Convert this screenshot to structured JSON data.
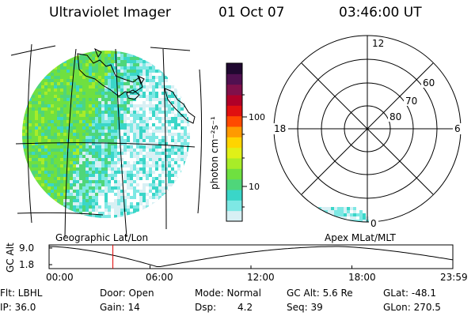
{
  "header": {
    "instrument": "Ultraviolet Imager",
    "date": "01 Oct 07",
    "time": "03:46:00 UT"
  },
  "left_map": {
    "label": "Geographic Lat/Lon"
  },
  "colorbar": {
    "unit_label": "photon cm⁻²s⁻¹",
    "tick_labels": [
      "100",
      "10"
    ],
    "colors": [
      "#d8f0f4",
      "#7ee8e4",
      "#3ad6c8",
      "#4fd67a",
      "#6fe040",
      "#a8ec28",
      "#e0f018",
      "#ffd400",
      "#ff9a00",
      "#ff4a00",
      "#e01010",
      "#b00028",
      "#80104a",
      "#501050",
      "#200830"
    ]
  },
  "polar_plot": {
    "hour_labels": [
      "12",
      "18",
      "6",
      "0"
    ],
    "lat_labels": [
      "60",
      "70",
      "80"
    ],
    "label": "Apex MLat/MLT"
  },
  "altitude_plot": {
    "y_label": "GC Alt",
    "y_ticks": [
      "9.0",
      "1.8"
    ],
    "x_ticks": [
      "00:00",
      "06:00",
      "12:00",
      "18:00",
      "23:59"
    ],
    "current_time_fraction": 0.158
  },
  "status": {
    "filter": "Flt: LBHL",
    "door": "Door: Open",
    "mode": "Mode: Normal",
    "gc_alt": "GC Alt: 5.6 Re",
    "glat": "GLat: -48.1",
    "ip": "IP: 36.0",
    "gain": "Gain: 14",
    "dsp_label": "Dsp:",
    "dsp_value": "4.2",
    "seq": "Seq: 39",
    "glon": "GLon: 270.5"
  }
}
